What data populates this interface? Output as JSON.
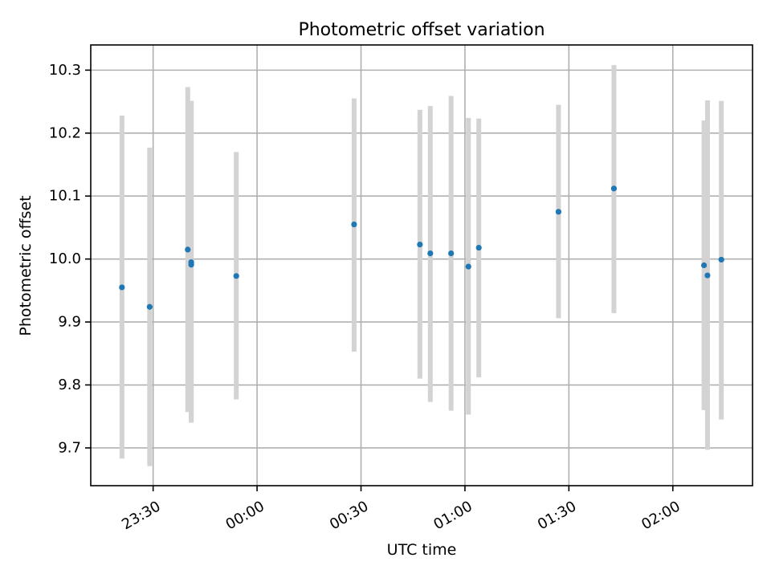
{
  "chart_data": {
    "type": "scatter",
    "title": "Photometric offset variation",
    "xlabel": "UTC time",
    "ylabel": "Photometric offset",
    "x_ticks": [
      "23:30",
      "00:00",
      "00:30",
      "01:00",
      "01:30",
      "02:00"
    ],
    "y_ticks": [
      "9.7",
      "9.8",
      "9.9",
      "10.0",
      "10.1",
      "10.2",
      "10.3"
    ],
    "xlim": [
      "23:12",
      "02:23"
    ],
    "ylim": [
      9.64,
      10.34
    ],
    "grid": true,
    "colors": {
      "points": "#1f77b4",
      "errorbars": "#d3d3d3",
      "grid": "#b0b0b0"
    },
    "points": [
      {
        "x": "23:21",
        "y": 9.955,
        "yerr_low": 9.683,
        "yerr_high": 10.228
      },
      {
        "x": "23:29",
        "y": 9.924,
        "yerr_low": 9.671,
        "yerr_high": 10.177
      },
      {
        "x": "23:40",
        "y": 10.015,
        "yerr_low": 9.757,
        "yerr_high": 10.273
      },
      {
        "x": "23:41",
        "y": 9.991,
        "yerr_low": 9.74,
        "yerr_high": 10.251
      },
      {
        "x": "23:41",
        "y": 9.995,
        "yerr_low": 9.744,
        "yerr_high": 10.251
      },
      {
        "x": "23:54",
        "y": 9.973,
        "yerr_low": 9.777,
        "yerr_high": 10.17
      },
      {
        "x": "00:28",
        "y": 10.055,
        "yerr_low": 9.853,
        "yerr_high": 10.255
      },
      {
        "x": "00:47",
        "y": 10.023,
        "yerr_low": 9.81,
        "yerr_high": 10.237
      },
      {
        "x": "00:50",
        "y": 10.009,
        "yerr_low": 9.773,
        "yerr_high": 10.243
      },
      {
        "x": "00:56",
        "y": 10.009,
        "yerr_low": 9.759,
        "yerr_high": 10.259
      },
      {
        "x": "01:01",
        "y": 9.988,
        "yerr_low": 9.753,
        "yerr_high": 10.224
      },
      {
        "x": "01:04",
        "y": 10.018,
        "yerr_low": 9.812,
        "yerr_high": 10.223
      },
      {
        "x": "01:27",
        "y": 10.075,
        "yerr_low": 9.906,
        "yerr_high": 10.245
      },
      {
        "x": "01:43",
        "y": 10.112,
        "yerr_low": 9.914,
        "yerr_high": 10.308
      },
      {
        "x": "02:09",
        "y": 9.99,
        "yerr_low": 9.76,
        "yerr_high": 10.22
      },
      {
        "x": "02:10",
        "y": 9.974,
        "yerr_low": 9.697,
        "yerr_high": 10.252
      },
      {
        "x": "02:14",
        "y": 9.999,
        "yerr_low": 9.745,
        "yerr_high": 10.251
      }
    ]
  }
}
